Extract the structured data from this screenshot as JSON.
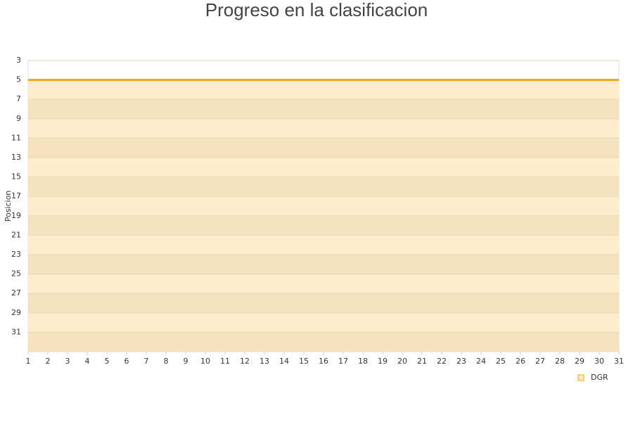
{
  "chart_data": {
    "type": "line",
    "title": "Progreso en la clasificacion",
    "y_label": "Posicion",
    "x": [
      1,
      2,
      3,
      4,
      5,
      6,
      7,
      8,
      9,
      10,
      11,
      12,
      13,
      14,
      15,
      16,
      17,
      18,
      19,
      20,
      21,
      22,
      23,
      24,
      25,
      26,
      27,
      28,
      29,
      30,
      31
    ],
    "series": [
      {
        "name": "DGR",
        "color": "#f5a511",
        "values": [
          5,
          5,
          5,
          5,
          5,
          5,
          5,
          5,
          5,
          5,
          5,
          5,
          5,
          5,
          5,
          5,
          5,
          5,
          5,
          5,
          5,
          5,
          5,
          5,
          5,
          5,
          5,
          5,
          5,
          5,
          5
        ]
      }
    ],
    "xlim": [
      1,
      31
    ],
    "xticks": [
      1,
      2,
      3,
      4,
      5,
      6,
      7,
      8,
      9,
      10,
      11,
      12,
      13,
      14,
      15,
      16,
      17,
      18,
      19,
      20,
      21,
      22,
      23,
      24,
      25,
      26,
      27,
      28,
      29,
      30,
      31
    ],
    "ylim": [
      33,
      3
    ],
    "yticks": [
      3,
      5,
      7,
      9,
      11,
      13,
      15,
      17,
      19,
      21,
      23,
      25,
      27,
      29,
      31
    ],
    "y_inverted": true,
    "grid": true,
    "legend": "bottom-right"
  }
}
